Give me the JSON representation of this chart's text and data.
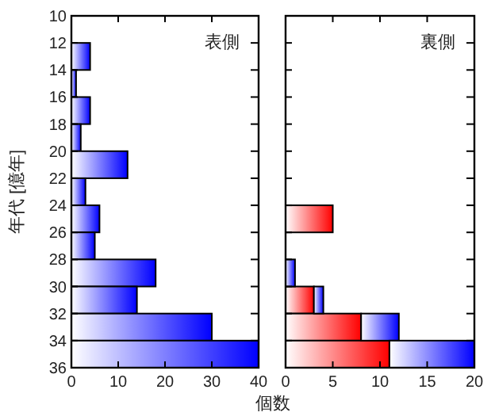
{
  "chart_data": [
    {
      "type": "bar",
      "orientation": "horizontal",
      "ylabel": "年代 [億年]",
      "xlabel": "個数",
      "annotations": [
        "表側"
      ],
      "x": [
        11,
        13,
        15,
        17,
        19,
        21,
        23,
        25,
        27,
        29,
        31,
        33,
        35
      ],
      "series": [
        {
          "color": "#0000ff",
          "values": [
            0,
            4,
            1,
            4,
            2,
            12,
            3,
            6,
            5,
            18,
            14,
            30,
            40
          ]
        }
      ],
      "xlim": [
        0,
        40
      ],
      "xticks": [
        0,
        10,
        20,
        30,
        40
      ],
      "ylim": [
        36,
        10
      ],
      "yticks": [
        10,
        12,
        14,
        16,
        18,
        20,
        22,
        24,
        26,
        28,
        30,
        32,
        34,
        36
      ]
    },
    {
      "type": "bar",
      "orientation": "horizontal",
      "stacked": true,
      "annotations": [
        "裏側"
      ],
      "tick_labels": "x",
      "x": [
        11,
        13,
        15,
        17,
        19,
        21,
        23,
        25,
        27,
        29,
        31,
        33,
        35
      ],
      "series": [
        {
          "color": "#ff0000",
          "values": [
            0,
            0,
            0,
            0,
            0,
            0,
            0,
            5,
            0,
            0,
            3,
            8,
            11
          ]
        },
        {
          "color": "#0000ff",
          "values": [
            0,
            0,
            0,
            0,
            0,
            0,
            0,
            0,
            0,
            1,
            1,
            4,
            9
          ]
        }
      ],
      "xlim": [
        0,
        20
      ],
      "xticks": [
        0,
        5,
        10,
        15,
        20
      ],
      "ylim": [
        36,
        10
      ],
      "yticks": [
        10,
        12,
        14,
        16,
        18,
        20,
        22,
        24,
        26,
        28,
        30,
        32,
        34,
        36
      ]
    }
  ]
}
